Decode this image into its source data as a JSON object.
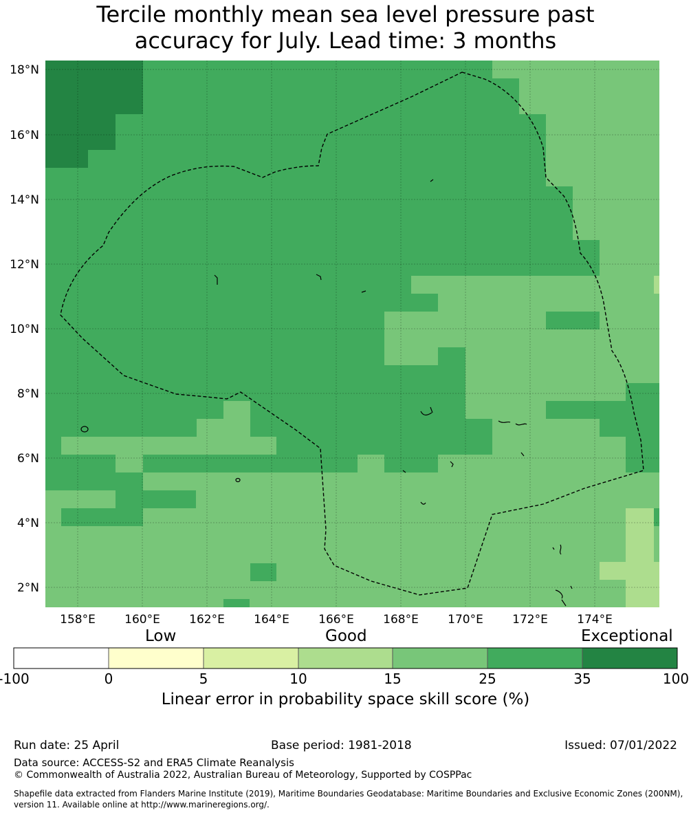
{
  "title": {
    "line1": "Tercile monthly mean sea level pressure past",
    "line2": "accuracy for July. Lead time: 3 months"
  },
  "map": {
    "lat_labels": [
      "18°N",
      "16°N",
      "14°N",
      "12°N",
      "10°N",
      "8°N",
      "6°N",
      "4°N",
      "2°N"
    ],
    "lon_labels": [
      "158°E",
      "160°E",
      "162°E",
      "164°E",
      "166°E",
      "168°E",
      "170°E",
      "172°E",
      "174°E"
    ],
    "boundary_style": "dashed black EEZ outline",
    "grid": true
  },
  "colorbar": {
    "categories": [
      "Low",
      "Good",
      "Exceptional"
    ],
    "ticks": [
      "-100",
      "0",
      "5",
      "10",
      "15",
      "25",
      "35",
      "100"
    ],
    "colors": [
      "#ffffff",
      "#ffffcc",
      "#d9f0a3",
      "#addd8e",
      "#78c679",
      "#41ab5d",
      "#238443"
    ],
    "label": "Linear error in probability space skill score (%)"
  },
  "footer": {
    "run_date": "Run date: 25 April",
    "base_period": "Base period: 1981-2018",
    "issued": "Issued: 07/01/2022",
    "data_source": "Data source: ACCESS-S2 and ERA5 Climate Reanalysis",
    "copyright": "© Commonwealth of Australia 2022, Australian Bureau of Meteorology, Supported by COSPPac",
    "shapefile": "Shapefile data extracted from Flanders Marine Institute (2019), Maritime Boundaries Geodatabase: Maritime Boundaries and Exclusive Economic Zones (200NM), version 11. Available online at http://www.marineregions.org/."
  }
}
